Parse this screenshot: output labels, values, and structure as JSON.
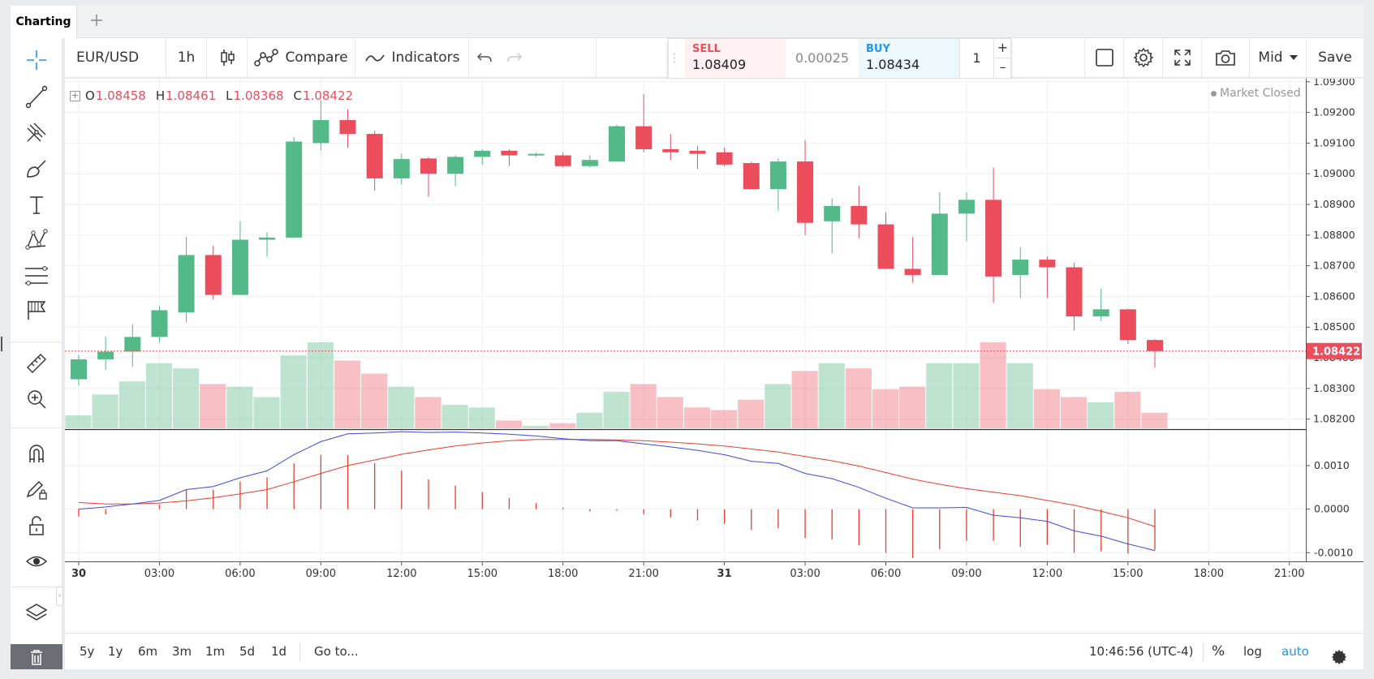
{
  "tabs": {
    "active": "Charting",
    "add": "+"
  },
  "toolbar": {
    "symbol": "EUR/USD",
    "interval": "1h",
    "compare": "Compare",
    "indicators": "Indicators",
    "price_mode": "Mid",
    "save": "Save"
  },
  "trade": {
    "sell_label": "SELL",
    "sell_price": "1.08409",
    "spread": "0.00025",
    "buy_label": "BUY",
    "buy_price": "1.08434",
    "quantity": "1",
    "plus": "+",
    "minus": "–"
  },
  "ohlc": {
    "o_label": "O",
    "o": "1.08458",
    "h_label": "H",
    "h": "1.08461",
    "l_label": "L",
    "l": "1.08368",
    "c_label": "C",
    "c": "1.08422"
  },
  "market_status": "Market Closed",
  "last_price_label": "1.08422",
  "bottom": {
    "ranges": [
      "5y",
      "1y",
      "6m",
      "3m",
      "1m",
      "5d",
      "1d"
    ],
    "goto": "Go to...",
    "clock": "10:46:56 (UTC-4)",
    "percent": "%",
    "log": "log",
    "auto": "auto"
  },
  "colors": {
    "up": "#53b987",
    "down": "#eb4d5c",
    "accent": "#2196f3",
    "macd": "#3f48e6",
    "signal": "#f03b2f"
  },
  "chart_data": {
    "type": "candlestick",
    "title": "EUR/USD 1h",
    "price_axis": {
      "ylim": [
        1.0817,
        1.0931
      ],
      "ticks": [
        "1.09300",
        "1.09200",
        "1.09100",
        "1.09000",
        "1.08900",
        "1.08800",
        "1.08700",
        "1.08600",
        "1.08500",
        "1.08400",
        "1.08300",
        "1.08200"
      ],
      "tick_values": [
        1.093,
        1.092,
        1.091,
        1.09,
        1.089,
        1.088,
        1.087,
        1.086,
        1.085,
        1.084,
        1.083,
        1.082
      ]
    },
    "time_axis": {
      "ticks": [
        "30",
        "03:00",
        "06:00",
        "09:00",
        "12:00",
        "15:00",
        "18:00",
        "21:00",
        "31",
        "03:00",
        "06:00",
        "09:00",
        "12:00",
        "15:00",
        "18:00",
        "21:00"
      ],
      "bold_ticks": [
        "30",
        "31"
      ],
      "bar_index": [
        0,
        3,
        6,
        9,
        12,
        15,
        18,
        21,
        24,
        27,
        30,
        33,
        36,
        39,
        42,
        45
      ]
    },
    "candles": [
      {
        "o": 1.0833,
        "h": 1.0841,
        "l": 1.0831,
        "c": 1.08395
      },
      {
        "o": 1.08395,
        "h": 1.0847,
        "l": 1.0836,
        "c": 1.0842
      },
      {
        "o": 1.0842,
        "h": 1.0851,
        "l": 1.0837,
        "c": 1.08468
      },
      {
        "o": 1.08468,
        "h": 1.0857,
        "l": 1.0845,
        "c": 1.08555
      },
      {
        "o": 1.08548,
        "h": 1.08795,
        "l": 1.08515,
        "c": 1.08735
      },
      {
        "o": 1.08735,
        "h": 1.08765,
        "l": 1.0859,
        "c": 1.08605
      },
      {
        "o": 1.08605,
        "h": 1.08845,
        "l": 1.08605,
        "c": 1.08785
      },
      {
        "o": 1.08785,
        "h": 1.0881,
        "l": 1.0873,
        "c": 1.08792
      },
      {
        "o": 1.08792,
        "h": 1.0912,
        "l": 1.08792,
        "c": 1.09105
      },
      {
        "o": 1.091,
        "h": 1.0924,
        "l": 1.09075,
        "c": 1.09175
      },
      {
        "o": 1.09175,
        "h": 1.0921,
        "l": 1.09085,
        "c": 1.0913
      },
      {
        "o": 1.0913,
        "h": 1.0914,
        "l": 1.08945,
        "c": 1.08985
      },
      {
        "o": 1.08985,
        "h": 1.09065,
        "l": 1.08965,
        "c": 1.09048
      },
      {
        "o": 1.0905,
        "h": 1.09055,
        "l": 1.08925,
        "c": 1.09
      },
      {
        "o": 1.09,
        "h": 1.0906,
        "l": 1.0896,
        "c": 1.09055
      },
      {
        "o": 1.09055,
        "h": 1.0908,
        "l": 1.0903,
        "c": 1.09075
      },
      {
        "o": 1.09075,
        "h": 1.0908,
        "l": 1.09025,
        "c": 1.0906
      },
      {
        "o": 1.0906,
        "h": 1.0907,
        "l": 1.09055,
        "c": 1.09065
      },
      {
        "o": 1.0906,
        "h": 1.0907,
        "l": 1.0902,
        "c": 1.09025
      },
      {
        "o": 1.09025,
        "h": 1.0906,
        "l": 1.0902,
        "c": 1.09045
      },
      {
        "o": 1.0904,
        "h": 1.0916,
        "l": 1.0904,
        "c": 1.09155
      },
      {
        "o": 1.09155,
        "h": 1.0926,
        "l": 1.0907,
        "c": 1.0908
      },
      {
        "o": 1.0908,
        "h": 1.0913,
        "l": 1.09045,
        "c": 1.0907
      },
      {
        "o": 1.09075,
        "h": 1.0909,
        "l": 1.09015,
        "c": 1.09065
      },
      {
        "o": 1.0907,
        "h": 1.09085,
        "l": 1.09025,
        "c": 1.0903
      },
      {
        "o": 1.09035,
        "h": 1.0904,
        "l": 1.0895,
        "c": 1.0895
      },
      {
        "o": 1.0895,
        "h": 1.0905,
        "l": 1.0888,
        "c": 1.0904
      },
      {
        "o": 1.0904,
        "h": 1.0911,
        "l": 1.088,
        "c": 1.0884
      },
      {
        "o": 1.08845,
        "h": 1.0892,
        "l": 1.0874,
        "c": 1.08895
      },
      {
        "o": 1.08895,
        "h": 1.0896,
        "l": 1.0879,
        "c": 1.08835
      },
      {
        "o": 1.08835,
        "h": 1.08875,
        "l": 1.0869,
        "c": 1.0869
      },
      {
        "o": 1.0869,
        "h": 1.08795,
        "l": 1.08645,
        "c": 1.0867
      },
      {
        "o": 1.0867,
        "h": 1.0894,
        "l": 1.0867,
        "c": 1.0887
      },
      {
        "o": 1.0887,
        "h": 1.0894,
        "l": 1.0878,
        "c": 1.08915
      },
      {
        "o": 1.08915,
        "h": 1.0902,
        "l": 1.0858,
        "c": 1.08665
      },
      {
        "o": 1.0867,
        "h": 1.0876,
        "l": 1.08595,
        "c": 1.0872
      },
      {
        "o": 1.0872,
        "h": 1.0873,
        "l": 1.08595,
        "c": 1.08695
      },
      {
        "o": 1.08695,
        "h": 1.0871,
        "l": 1.0849,
        "c": 1.08535
      },
      {
        "o": 1.08535,
        "h": 1.08625,
        "l": 1.0852,
        "c": 1.08558
      },
      {
        "o": 1.08558,
        "h": 1.0856,
        "l": 1.08445,
        "c": 1.08458
      },
      {
        "o": 1.08458,
        "h": 1.08461,
        "l": 1.08368,
        "c": 1.08422
      }
    ],
    "volumes": [
      5,
      13,
      18,
      25,
      23,
      17,
      16,
      12,
      28,
      33,
      26,
      21,
      16,
      12,
      9,
      8,
      3,
      1,
      2,
      6,
      14,
      17,
      12,
      8,
      7,
      11,
      17,
      22,
      25,
      23,
      15,
      16,
      25,
      25,
      33,
      25,
      15,
      12,
      10,
      14,
      6
    ],
    "macd_axis": {
      "ylim": [
        -0.0012,
        0.0018
      ],
      "ticks": [
        "0.0010",
        "0.0000",
        "-0.0010"
      ],
      "tick_values": [
        0.001,
        0,
        -0.001
      ]
    },
    "macd": [
      0.0,
      5e-05,
      0.00012,
      0.0002,
      0.00045,
      0.00052,
      0.00072,
      0.00088,
      0.00125,
      0.00155,
      0.00173,
      0.00175,
      0.00178,
      0.00176,
      0.00177,
      0.00175,
      0.00172,
      0.00168,
      0.00162,
      0.00157,
      0.00157,
      0.0015,
      0.00143,
      0.00135,
      0.00125,
      0.0011,
      0.00105,
      0.00082,
      0.0007,
      0.0005,
      0.00025,
      3e-05,
      3e-05,
      4e-05,
      -0.00014,
      -0.0002,
      -0.00028,
      -0.0005,
      -0.00062,
      -0.0008,
      -0.00095
    ],
    "signal": [
      0.00015,
      0.00012,
      0.00012,
      0.00014,
      0.00019,
      0.00026,
      0.00035,
      0.00045,
      0.00063,
      0.00082,
      0.001,
      0.00113,
      0.00126,
      0.00136,
      0.00145,
      0.00152,
      0.00157,
      0.0016,
      0.0016,
      0.0016,
      0.00159,
      0.00157,
      0.00154,
      0.0015,
      0.00145,
      0.00138,
      0.00131,
      0.00121,
      0.00111,
      0.00099,
      0.00084,
      0.00069,
      0.00057,
      0.00047,
      0.00039,
      0.00031,
      0.0002,
      9e-05,
      -5e-05,
      -0.0002,
      -0.0004
    ],
    "histogram": [
      -0.0001,
      -7e-05,
      0.0,
      6e-05,
      0.00026,
      0.00026,
      0.00037,
      0.00043,
      0.00062,
      0.00073,
      0.00073,
      0.00062,
      0.00052,
      0.0004,
      0.00032,
      0.00023,
      0.00015,
      8e-05,
      2e-05,
      -3e-05,
      -2e-05,
      -7e-05,
      -0.00011,
      -0.00015,
      -0.0002,
      -0.00028,
      -0.00026,
      -0.00039,
      -0.00041,
      -0.00049,
      -0.00059,
      -0.00066,
      -0.00054,
      -0.00043,
      -0.00043,
      -0.00051,
      -0.00048,
      -0.00059,
      -0.00057,
      -0.0006,
      -0.00055
    ]
  }
}
